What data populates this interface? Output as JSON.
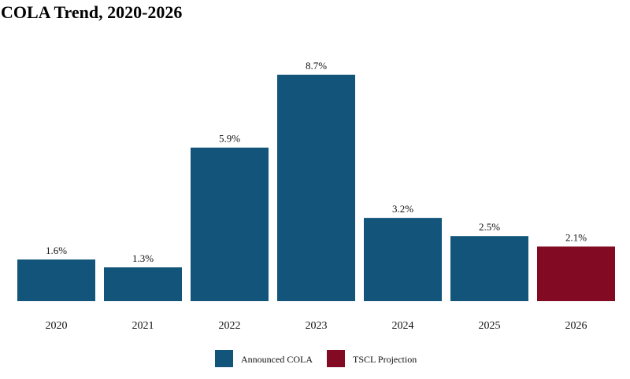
{
  "chart_data": {
    "type": "bar",
    "title": "COLA Trend, 2020-2026",
    "xlabel": "",
    "ylabel": "",
    "categories": [
      "2020",
      "2021",
      "2022",
      "2023",
      "2024",
      "2025",
      "2026"
    ],
    "values": [
      1.6,
      1.3,
      5.9,
      8.7,
      3.2,
      2.5,
      2.1
    ],
    "value_labels": [
      "1.6%",
      "1.3%",
      "5.9%",
      "8.7%",
      "3.2%",
      "2.5%",
      "2.1%"
    ],
    "bar_series": [
      "Announced COLA",
      "Announced COLA",
      "Announced COLA",
      "Announced COLA",
      "Announced COLA",
      "Announced COLA",
      "TSCL Projection"
    ],
    "legend": [
      {
        "name": "Announced COLA",
        "color": "#13557a"
      },
      {
        "name": "TSCL Projection",
        "color": "#820a22"
      }
    ],
    "legend_position": "bottom",
    "grid": false,
    "y_axis_visible": false,
    "ylim": [
      0,
      8.7
    ]
  }
}
